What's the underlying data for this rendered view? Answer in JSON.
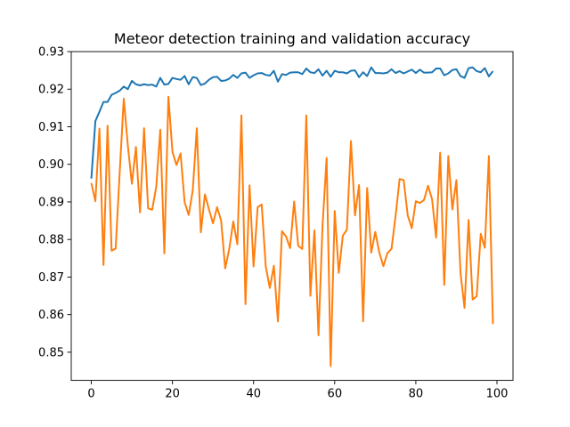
{
  "chart_data": {
    "type": "line",
    "title": "Meteor detection training and validation accuracy",
    "xlabel": "",
    "ylabel": "",
    "xlim": [
      -4.95,
      103.95
    ],
    "ylim": [
      0.8425,
      0.93
    ],
    "x_ticks": [
      0,
      20,
      40,
      60,
      80,
      100
    ],
    "y_ticks": [
      0.85,
      0.86,
      0.87,
      0.88,
      0.89,
      0.9,
      0.91,
      0.92,
      0.93
    ],
    "x_tick_labels": [
      "0",
      "20",
      "40",
      "60",
      "80",
      "100"
    ],
    "y_tick_labels": [
      "0.85",
      "0.86",
      "0.87",
      "0.88",
      "0.89",
      "0.90",
      "0.91",
      "0.92",
      "0.93"
    ],
    "grid": false,
    "legend": "none",
    "x": [
      0,
      1,
      2,
      3,
      4,
      5,
      6,
      7,
      8,
      9,
      10,
      11,
      12,
      13,
      14,
      15,
      16,
      17,
      18,
      19,
      20,
      21,
      22,
      23,
      24,
      25,
      26,
      27,
      28,
      29,
      30,
      31,
      32,
      33,
      34,
      35,
      36,
      37,
      38,
      39,
      40,
      41,
      42,
      43,
      44,
      45,
      46,
      47,
      48,
      49,
      50,
      51,
      52,
      53,
      54,
      55,
      56,
      57,
      58,
      59,
      60,
      61,
      62,
      63,
      64,
      65,
      66,
      67,
      68,
      69,
      70,
      71,
      72,
      73,
      74,
      75,
      76,
      77,
      78,
      79,
      80,
      81,
      82,
      83,
      84,
      85,
      86,
      87,
      88,
      89,
      90,
      91,
      92,
      93,
      94,
      95,
      96,
      97,
      98,
      99
    ],
    "series": [
      {
        "color": "#1f77b4",
        "values": [
          0.8962,
          0.9115,
          0.914,
          0.9166,
          0.9166,
          0.9185,
          0.919,
          0.9196,
          0.9207,
          0.92,
          0.9222,
          0.9213,
          0.921,
          0.9213,
          0.9211,
          0.9212,
          0.9207,
          0.923,
          0.9212,
          0.9214,
          0.923,
          0.9227,
          0.9225,
          0.9235,
          0.9213,
          0.9232,
          0.923,
          0.9211,
          0.9215,
          0.9225,
          0.9232,
          0.9233,
          0.9222,
          0.9223,
          0.9228,
          0.9238,
          0.923,
          0.9242,
          0.9244,
          0.923,
          0.9237,
          0.9242,
          0.9243,
          0.9238,
          0.9236,
          0.9249,
          0.922,
          0.924,
          0.9238,
          0.9244,
          0.9245,
          0.9245,
          0.924,
          0.9255,
          0.9245,
          0.9243,
          0.9253,
          0.9236,
          0.9249,
          0.9233,
          0.9249,
          0.9245,
          0.9245,
          0.9242,
          0.9249,
          0.925,
          0.9232,
          0.9245,
          0.9235,
          0.9258,
          0.9243,
          0.9243,
          0.9242,
          0.9244,
          0.9253,
          0.9243,
          0.9248,
          0.9242,
          0.9247,
          0.9252,
          0.9243,
          0.9252,
          0.9244,
          0.9244,
          0.9245,
          0.9255,
          0.9255,
          0.9237,
          0.9242,
          0.9251,
          0.9253,
          0.9235,
          0.923,
          0.9256,
          0.9258,
          0.9248,
          0.9245,
          0.9256,
          0.9234,
          0.9248
        ]
      },
      {
        "color": "#ff7f0e",
        "values": [
          0.895,
          0.8902,
          0.9095,
          0.8732,
          0.9103,
          0.877,
          0.8776,
          0.898,
          0.9175,
          0.905,
          0.8948,
          0.9046,
          0.8872,
          0.9096,
          0.8883,
          0.8879,
          0.894,
          0.9092,
          0.8763,
          0.918,
          0.9033,
          0.8998,
          0.9029,
          0.8899,
          0.8865,
          0.893,
          0.9096,
          0.8819,
          0.892,
          0.888,
          0.8843,
          0.8886,
          0.885,
          0.8723,
          0.8775,
          0.8848,
          0.8787,
          0.913,
          0.8628,
          0.8944,
          0.8728,
          0.8886,
          0.8893,
          0.8728,
          0.8671,
          0.873,
          0.8582,
          0.8822,
          0.8808,
          0.8777,
          0.8901,
          0.8783,
          0.8775,
          0.913,
          0.865,
          0.8824,
          0.8545,
          0.8837,
          0.9017,
          0.8463,
          0.8876,
          0.8711,
          0.881,
          0.8826,
          0.9062,
          0.8864,
          0.8945,
          0.8582,
          0.8937,
          0.8765,
          0.882,
          0.8765,
          0.8729,
          0.8764,
          0.8775,
          0.8862,
          0.8961,
          0.8958,
          0.8864,
          0.883,
          0.8902,
          0.8897,
          0.8905,
          0.8943,
          0.8907,
          0.8805,
          0.9031,
          0.8679,
          0.9022,
          0.888,
          0.8958,
          0.8712,
          0.8618,
          0.8852,
          0.864,
          0.8649,
          0.8815,
          0.8778,
          0.9022,
          0.8575
        ]
      }
    ]
  }
}
